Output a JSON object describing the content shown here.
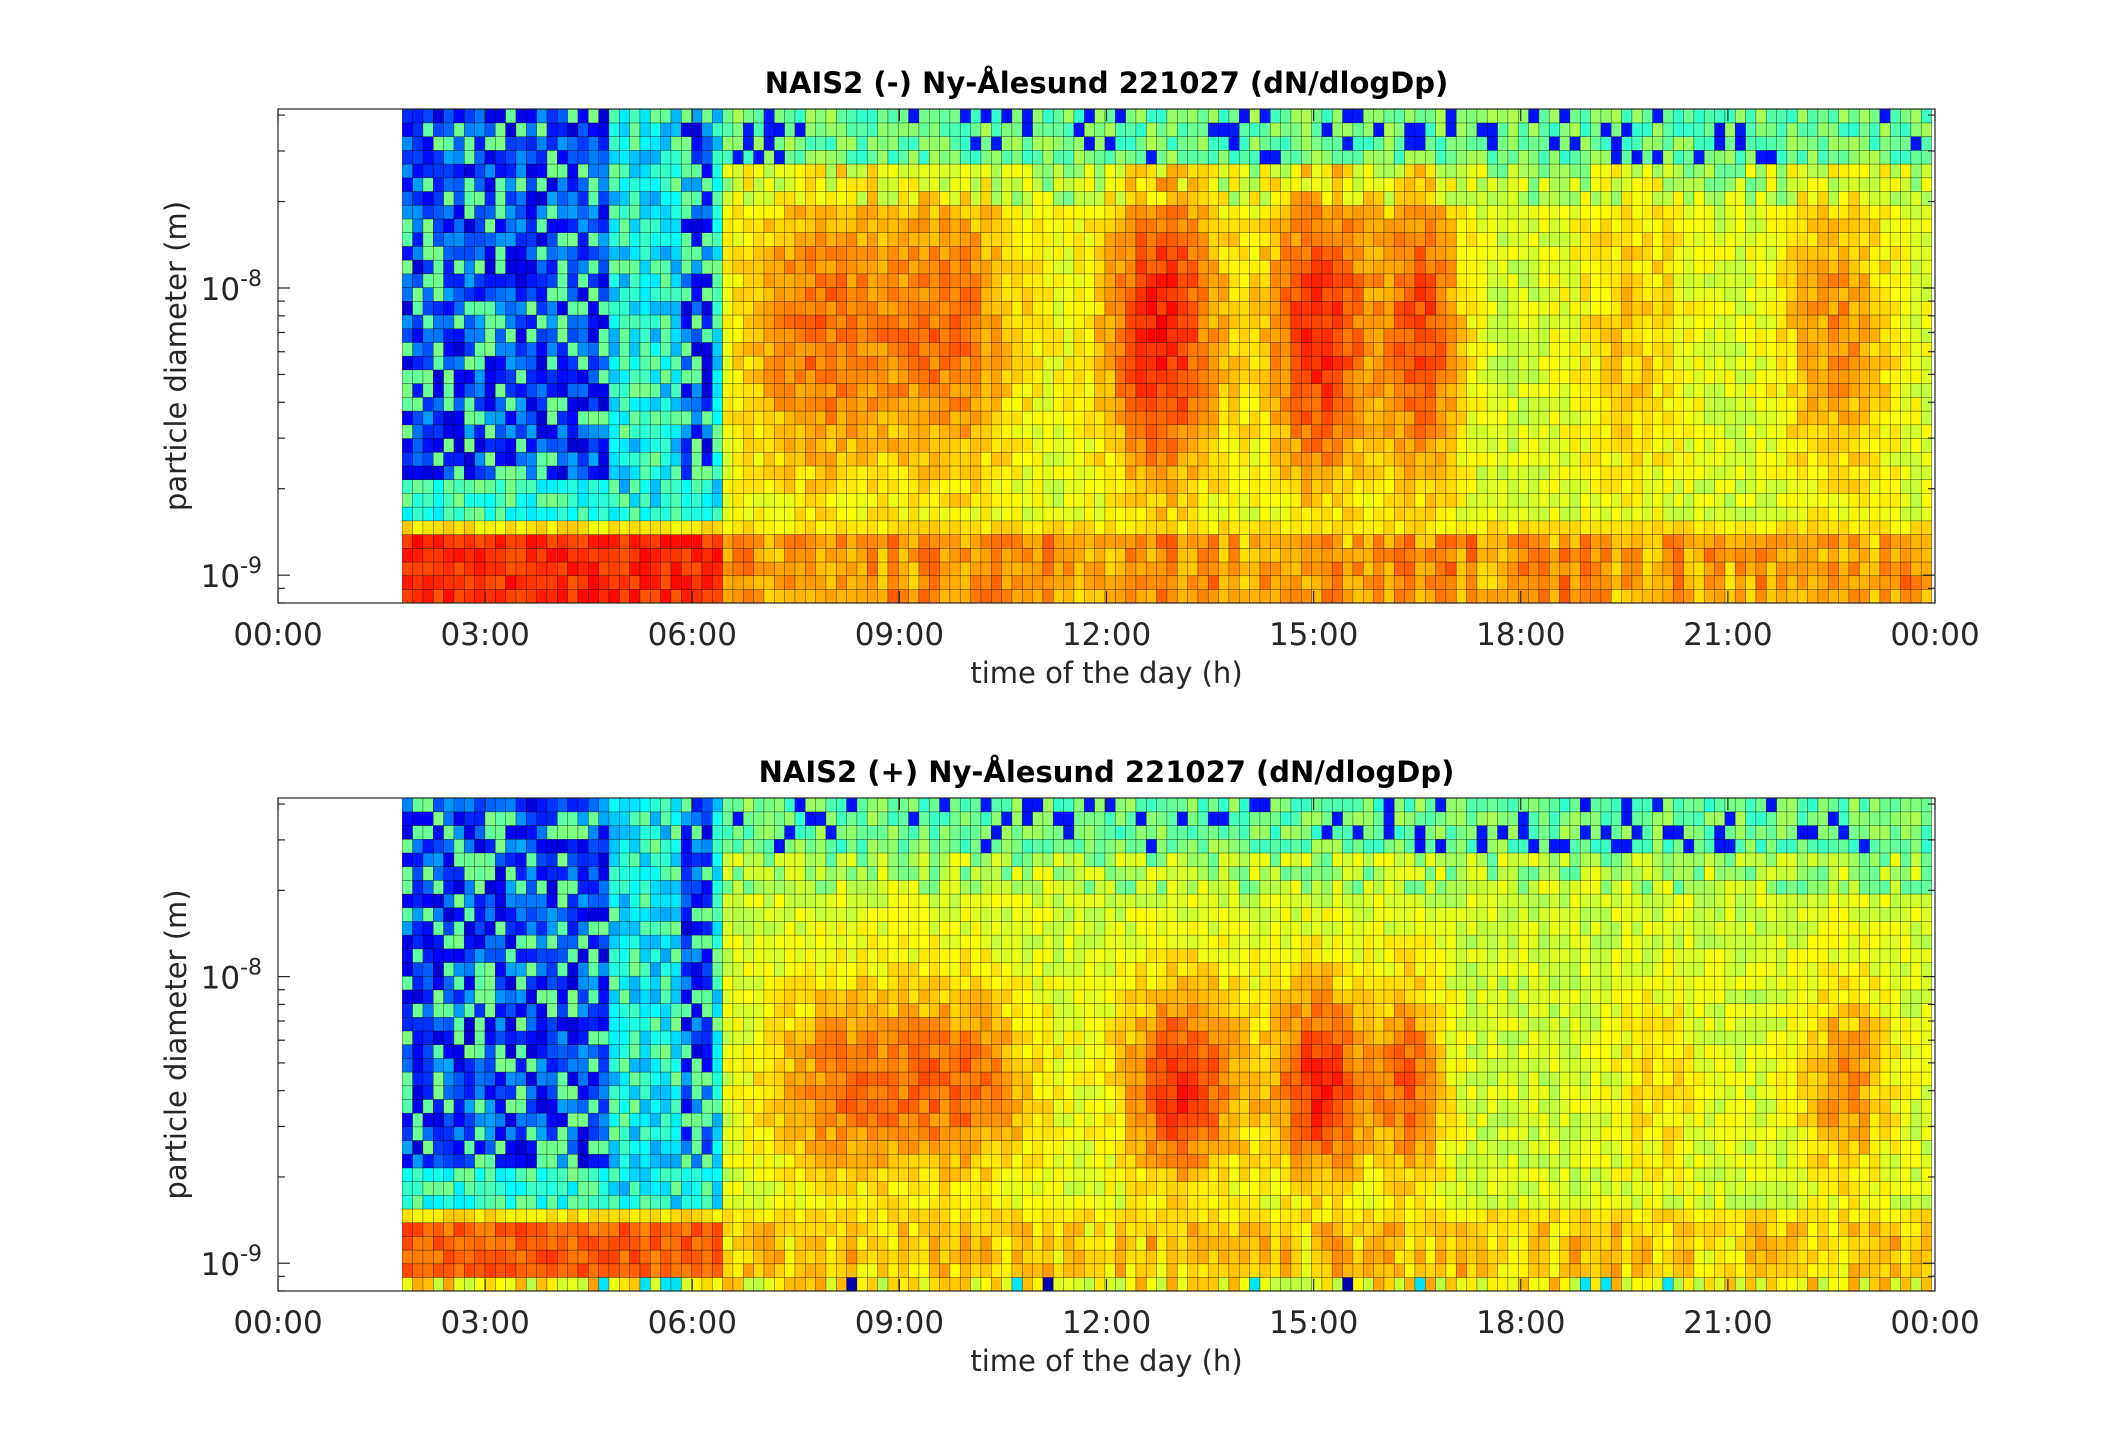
{
  "chart_data": [
    {
      "type": "heatmap",
      "title": "NAIS2 (-) Ny-Ålesund 221027 (dN/dlogDp)",
      "xlabel": "time of the day (h)",
      "ylabel": "particle diameter (m)",
      "x_range_hours": [
        0,
        24
      ],
      "y_range_m": [
        8e-10,
        4.2e-08
      ],
      "y_scale": "log",
      "data_start_hour": 1.8,
      "x_ticks": [
        "00:00",
        "03:00",
        "06:00",
        "09:00",
        "12:00",
        "15:00",
        "18:00",
        "21:00",
        "00:00"
      ],
      "y_ticks": [
        {
          "value": 1e-09,
          "base": "10",
          "exp": "-9"
        },
        {
          "value": 1e-08,
          "base": "10",
          "exp": "-8"
        }
      ],
      "colormap": [
        "#00008f",
        "#0000ff",
        "#00ffff",
        "#ffff00",
        "#ff0000",
        "#800000"
      ],
      "grid": false,
      "polarity": "negative",
      "qualitative_bands": {
        "low_mode_1nm": "orange-red",
        "early_morning_0130_0630": "dark blue (low concentration)",
        "daytime_07_24": "yellow-orange, red maxima around 12:30-13:30, 15:00-15:30, 16:00-17:00"
      }
    },
    {
      "type": "heatmap",
      "title": "NAIS2 (+) Ny-Ålesund 221027 (dN/dlogDp)",
      "xlabel": "time of the day (h)",
      "ylabel": "particle diameter (m)",
      "x_range_hours": [
        0,
        24
      ],
      "y_range_m": [
        8e-10,
        4.2e-08
      ],
      "y_scale": "log",
      "data_start_hour": 1.8,
      "x_ticks": [
        "00:00",
        "03:00",
        "06:00",
        "09:00",
        "12:00",
        "15:00",
        "18:00",
        "21:00",
        "00:00"
      ],
      "y_ticks": [
        {
          "value": 1e-09,
          "base": "10",
          "exp": "-9"
        },
        {
          "value": 1e-08,
          "base": "10",
          "exp": "-8"
        }
      ],
      "colormap": [
        "#00008f",
        "#0000ff",
        "#00ffff",
        "#ffff00",
        "#ff0000",
        "#800000"
      ],
      "grid": false,
      "polarity": "positive",
      "qualitative_bands": {
        "low_mode_1nm": "orange",
        "early_morning_0130_0630": "dark blue (low concentration)",
        "daytime_07_24": "yellow-orange, red maxima around 13:00 and 15:00"
      }
    }
  ]
}
